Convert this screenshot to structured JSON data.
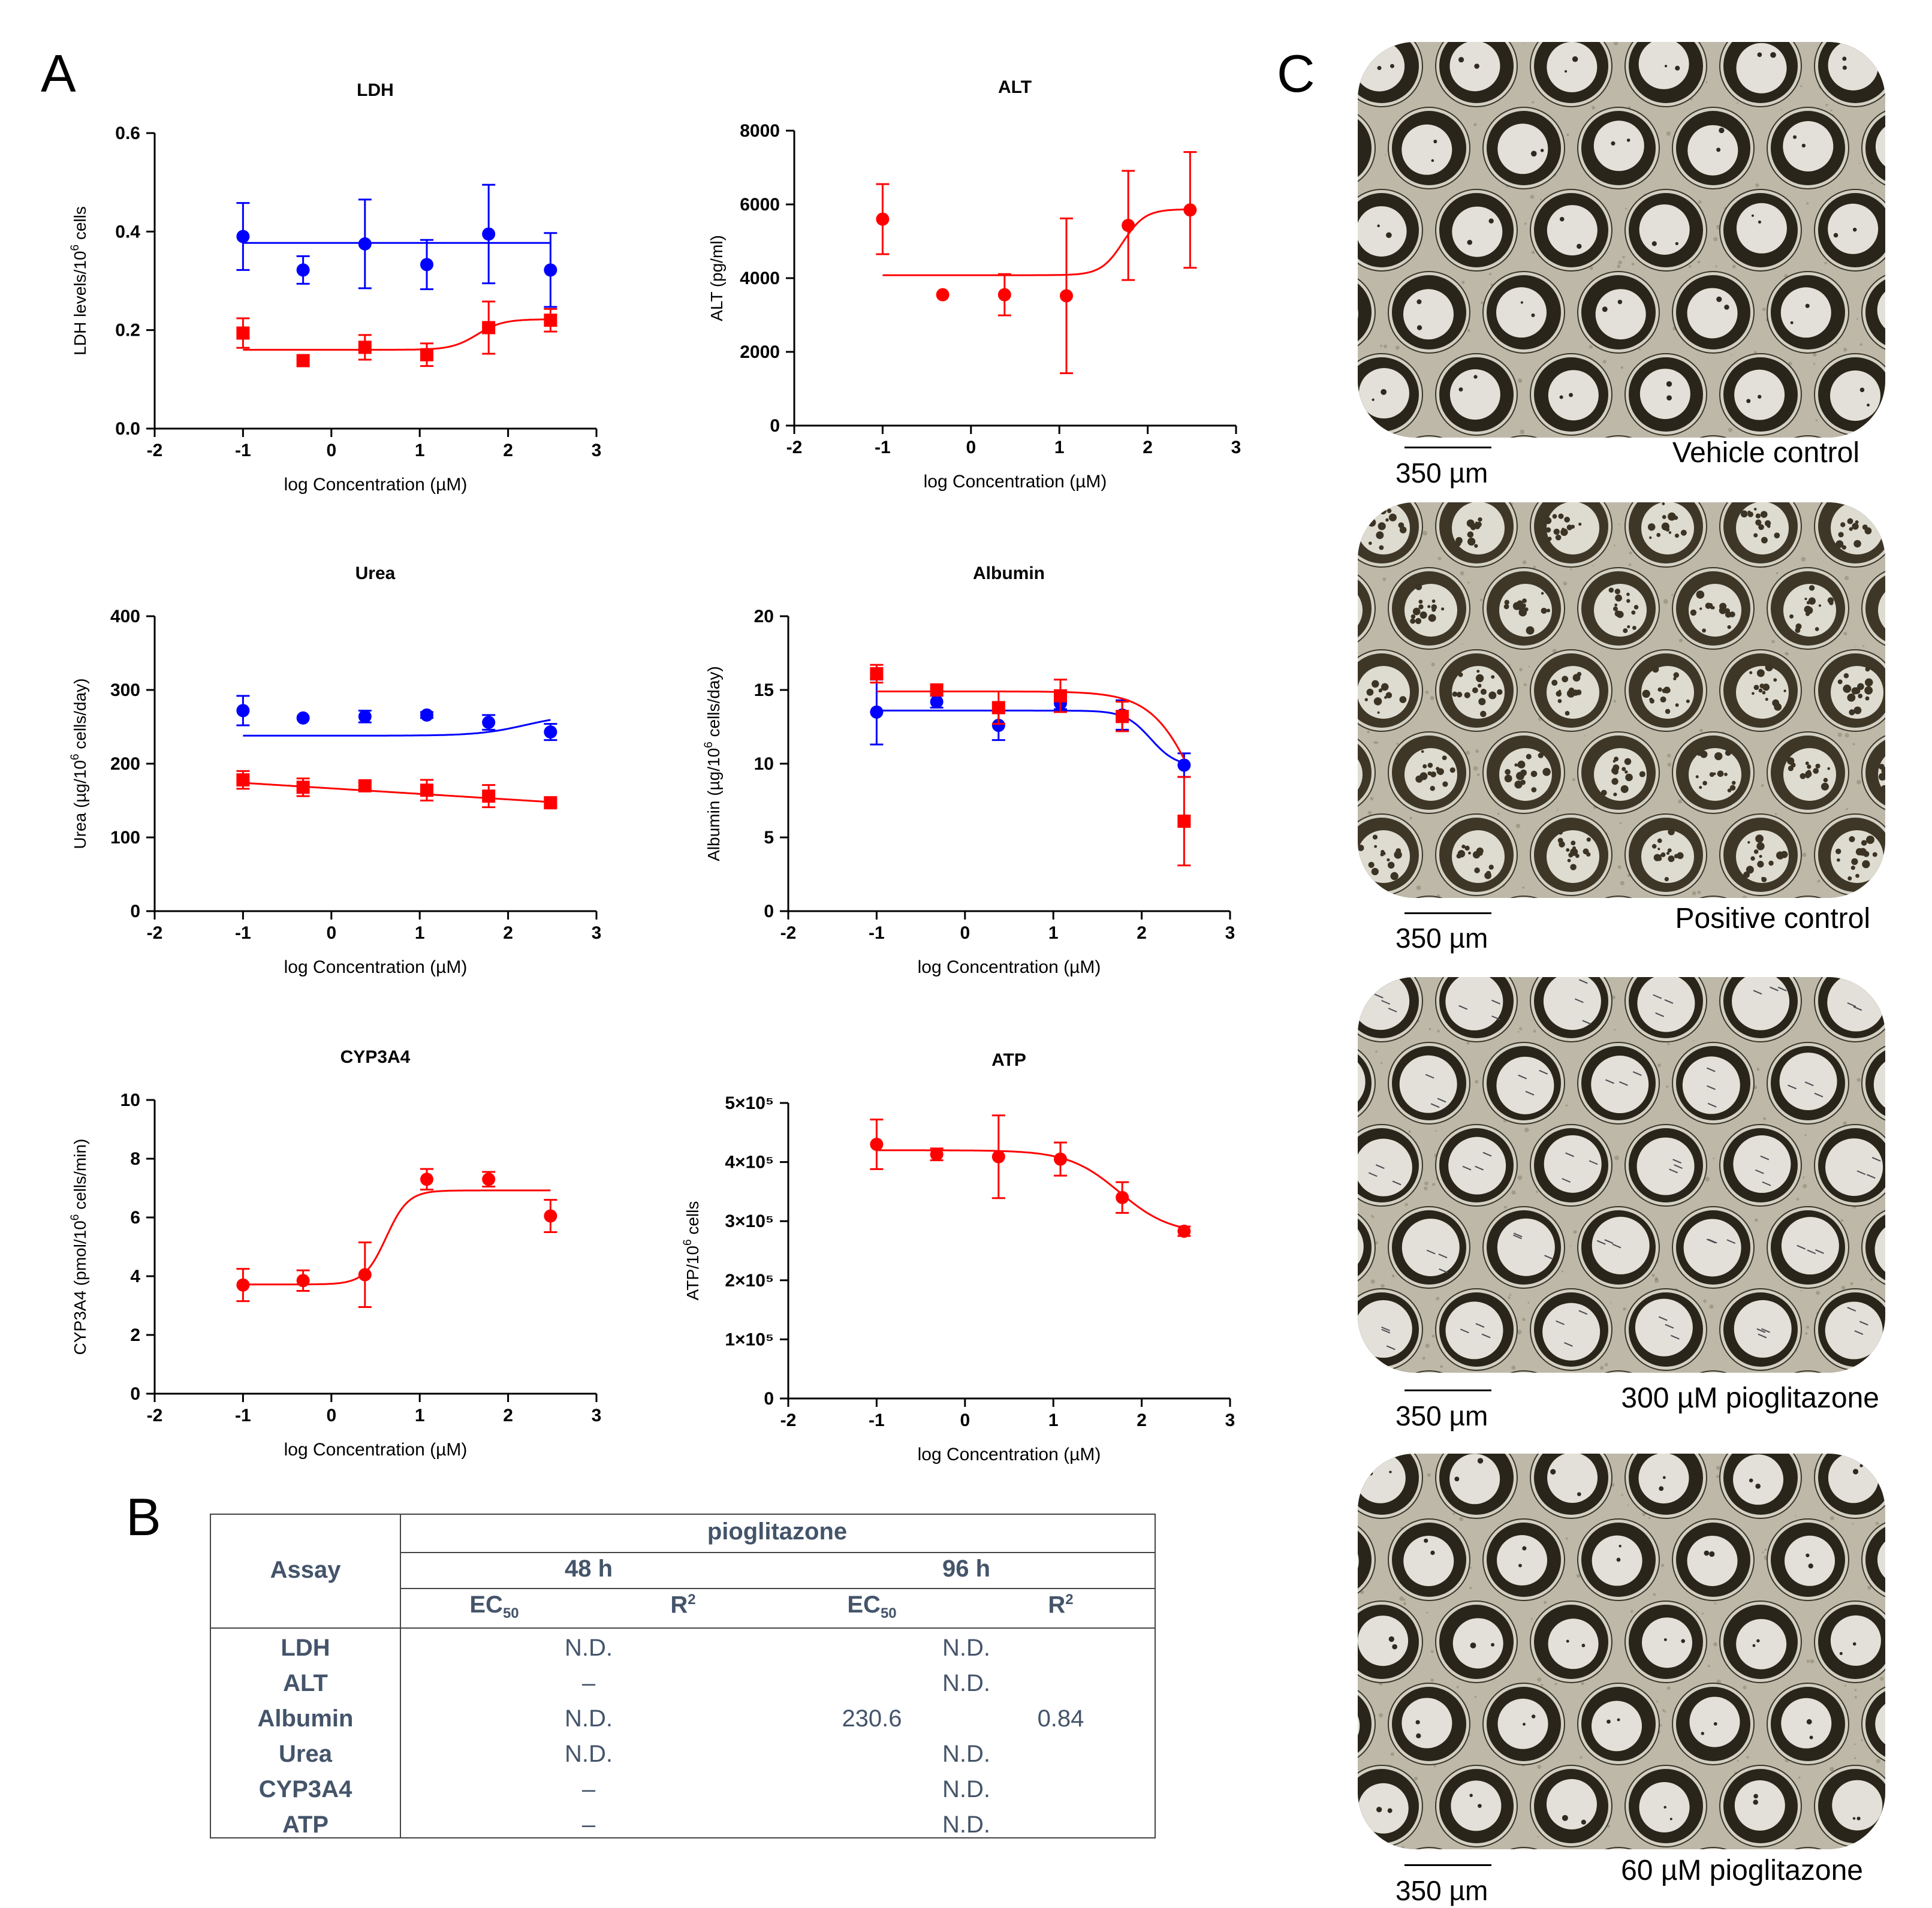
{
  "panels": {
    "a": "A",
    "b": "B",
    "c": "C"
  },
  "colors": {
    "series_48h": "#ff0000",
    "series_96h": "#0000ff",
    "table_text": "#44546a"
  },
  "chart_data": [
    {
      "id": "ldh",
      "type": "scatter",
      "title": "LDH",
      "xlabel": "log Concentration (µM)",
      "ylabel_parts": [
        "LDH levels/10",
        "6",
        " cells"
      ],
      "xlim": [
        -2,
        3
      ],
      "ylim": [
        0,
        0.6
      ],
      "xticks": [
        "-2",
        "-1",
        "0",
        "1",
        "2",
        "3"
      ],
      "yticks": [
        "0.0",
        "0.2",
        "0.4",
        "0.6"
      ],
      "series": [
        {
          "name": "96 h",
          "color": "#0000ff",
          "marker": "circle",
          "x": [
            -1.0,
            -0.32,
            0.38,
            1.08,
            1.78,
            2.48
          ],
          "y": [
            0.39,
            0.322,
            0.375,
            0.333,
            0.395,
            0.322
          ],
          "err": [
            0.068,
            0.028,
            0.09,
            0.05,
            0.1,
            0.075
          ],
          "fit": {
            "model": "flat",
            "value": 0.377
          }
        },
        {
          "name": "48 h",
          "color": "#ff0000",
          "marker": "square",
          "x": [
            -1.0,
            -0.32,
            0.38,
            1.08,
            1.78,
            2.48
          ],
          "y": [
            0.194,
            0.138,
            0.165,
            0.15,
            0.205,
            0.22
          ],
          "err": [
            0.03,
            0,
            0.025,
            0.023,
            0.053,
            0.023
          ],
          "fit": {
            "model": "sigmoid",
            "bottom": 0.16,
            "top": 0.222,
            "mid": 1.65,
            "hill": 3.0
          }
        }
      ]
    },
    {
      "id": "alt",
      "type": "scatter",
      "title": "ALT",
      "xlabel": "log Concentration (µM)",
      "ylabel_parts": [
        "ALT (pg/ml)"
      ],
      "xlim": [
        -2,
        3
      ],
      "ylim": [
        0,
        8000
      ],
      "xticks": [
        "-2",
        "-1",
        "0",
        "1",
        "2",
        "3"
      ],
      "yticks": [
        "0",
        "2000",
        "4000",
        "6000",
        "8000"
      ],
      "series": [
        {
          "name": "48 h",
          "color": "#ff0000",
          "marker": "circle",
          "x": [
            -1.0,
            -0.32,
            0.38,
            1.08,
            1.78,
            2.48
          ],
          "y": [
            5600,
            3550,
            3550,
            3520,
            5430,
            5850
          ],
          "err": [
            950,
            0,
            560,
            2100,
            1480,
            1570
          ],
          "fit": {
            "model": "sigmoid",
            "bottom": 4080,
            "top": 5870,
            "mid": 1.72,
            "hill": 3.5
          }
        }
      ]
    },
    {
      "id": "urea",
      "type": "scatter",
      "title": "Urea",
      "xlabel": "log Concentration (µM)",
      "ylabel_parts": [
        "Urea (µg/10",
        "6",
        " cells/day)"
      ],
      "xlim": [
        -2,
        3
      ],
      "ylim": [
        0,
        400
      ],
      "xticks": [
        "-2",
        "-1",
        "0",
        "1",
        "2",
        "3"
      ],
      "yticks": [
        "0",
        "100",
        "200",
        "300",
        "400"
      ],
      "series": [
        {
          "name": "96 h",
          "color": "#0000ff",
          "marker": "circle",
          "x": [
            -1.0,
            -0.32,
            0.38,
            1.08,
            1.78,
            2.48
          ],
          "y": [
            272,
            262,
            264,
            266,
            256,
            243
          ],
          "err": [
            20,
            0,
            8,
            4,
            10,
            11
          ],
          "fit": {
            "model": "sigmoid",
            "bottom": 238,
            "top": 267,
            "mid": 2.2,
            "hill": 1.6
          }
        },
        {
          "name": "48 h",
          "color": "#ff0000",
          "marker": "square",
          "x": [
            -1.0,
            -0.32,
            0.38,
            1.08,
            1.78,
            2.48
          ],
          "y": [
            178,
            168,
            170,
            164,
            156,
            147
          ],
          "err": [
            12,
            12,
            5,
            14,
            15,
            5
          ],
          "fit": {
            "model": "linear",
            "y0": 174,
            "y1": 148
          }
        }
      ]
    },
    {
      "id": "albumin",
      "type": "scatter",
      "title": "Albumin",
      "xlabel": "log Concentration (µM)",
      "ylabel_parts": [
        "Albumin (µg/10",
        "6",
        " cells/day)"
      ],
      "xlim": [
        -2,
        3
      ],
      "ylim": [
        0,
        20
      ],
      "xticks": [
        "-2",
        "-1",
        "0",
        "1",
        "2",
        "3"
      ],
      "yticks": [
        "0",
        "5",
        "10",
        "15",
        "20"
      ],
      "series": [
        {
          "name": "96 h",
          "color": "#0000ff",
          "marker": "circle",
          "x": [
            -1.0,
            -0.32,
            0.38,
            1.08,
            1.78,
            2.48
          ],
          "y": [
            13.5,
            14.2,
            12.6,
            14.1,
            13.3,
            9.9
          ],
          "err": [
            2.2,
            0.4,
            1.0,
            0.4,
            1.0,
            0.8
          ],
          "fit": {
            "model": "sigmoid",
            "bottom": 9.8,
            "top": 13.6,
            "mid": 2.1,
            "hill": -3.0
          }
        },
        {
          "name": "48 h",
          "color": "#ff0000",
          "marker": "square",
          "x": [
            -1.0,
            -0.32,
            0.38,
            1.08,
            1.78,
            2.48
          ],
          "y": [
            16.1,
            15.0,
            13.8,
            14.6,
            13.2,
            6.1
          ],
          "err": [
            0.6,
            0,
            1.1,
            1.1,
            1.0,
            3.0
          ],
          "fit": {
            "model": "sigmoid",
            "bottom": 0.0,
            "top": 14.9,
            "mid": 2.7,
            "hill": -1.6
          }
        }
      ]
    },
    {
      "id": "cyp3a4",
      "type": "scatter",
      "title": "CYP3A4",
      "xlabel": "log Concentration (µM)",
      "ylabel_parts": [
        "CYP3A4 (pmol/10",
        "6",
        " cells/min)"
      ],
      "xlim": [
        -2,
        3
      ],
      "ylim": [
        0,
        10
      ],
      "xticks": [
        "-2",
        "-1",
        "0",
        "1",
        "2",
        "3"
      ],
      "yticks": [
        "0",
        "2",
        "4",
        "6",
        "8",
        "10"
      ],
      "series": [
        {
          "name": "48 h",
          "color": "#ff0000",
          "marker": "circle",
          "x": [
            -1.0,
            -0.32,
            0.38,
            1.08,
            1.78,
            2.48
          ],
          "y": [
            3.7,
            3.85,
            4.05,
            7.3,
            7.3,
            6.05
          ],
          "err": [
            0.55,
            0.35,
            1.1,
            0.35,
            0.25,
            0.55
          ],
          "fit": {
            "model": "sigmoid",
            "bottom": 3.72,
            "top": 6.92,
            "mid": 0.62,
            "hill": 3.5
          }
        }
      ]
    },
    {
      "id": "atp",
      "type": "scatter",
      "title": "ATP",
      "xlabel": "log Concentration (µM)",
      "ylabel_parts": [
        "ATP/10",
        "6",
        " cells"
      ],
      "xlim": [
        -2,
        3
      ],
      "ylim": [
        0,
        500000
      ],
      "xticks": [
        "-2",
        "-1",
        "0",
        "1",
        "2",
        "3"
      ],
      "yticks": [
        "0",
        "1×10⁵",
        "2×10⁵",
        "3×10⁵",
        "4×10⁵",
        "5×10⁵"
      ],
      "series": [
        {
          "name": "48 h",
          "color": "#ff0000",
          "marker": "circle",
          "x": [
            -1.0,
            -0.32,
            0.38,
            1.08,
            1.78,
            2.48
          ],
          "y": [
            430000,
            413000,
            409000,
            405000,
            340000,
            283000
          ],
          "err": [
            42000,
            10000,
            70000,
            28000,
            26000,
            8000
          ],
          "fit": {
            "model": "sigmoid",
            "bottom": 278000,
            "top": 420000,
            "mid": 1.75,
            "hill": -1.5
          }
        }
      ]
    }
  ],
  "table": {
    "assay_header": "Assay",
    "compound": "pioglitazone",
    "time_48": "48 h",
    "time_96": "96 h",
    "ec50": "EC",
    "ec50_sub": "50",
    "r2": "R",
    "r2_sup": "2",
    "rows": [
      {
        "assay": "LDH",
        "v48": "N.D.",
        "ec96": "",
        "v96": "N.D.",
        "r96": ""
      },
      {
        "assay": "ALT",
        "v48": "–",
        "ec96": "",
        "v96": "N.D.",
        "r96": ""
      },
      {
        "assay": "Albumin",
        "v48": "N.D.",
        "ec96": "230.6",
        "v96": "",
        "r96": "0.84"
      },
      {
        "assay": "Urea",
        "v48": "N.D.",
        "ec96": "",
        "v96": "N.D.",
        "r96": ""
      },
      {
        "assay": "CYP3A4",
        "v48": "–",
        "ec96": "",
        "v96": "N.D.",
        "r96": ""
      },
      {
        "assay": "ATP",
        "v48": "–",
        "ec96": "",
        "v96": "N.D.",
        "r96": ""
      }
    ]
  },
  "micrographs": [
    {
      "label": "Vehicle control",
      "scale": "350 µm",
      "condition": "healthy"
    },
    {
      "label": "Positive control",
      "scale": "350 µm",
      "condition": "damaged"
    },
    {
      "label": "300 µM pioglitazone",
      "scale": "350 µm",
      "condition": "sparse"
    },
    {
      "label": "60 µM pioglitazone",
      "scale": "350 µm",
      "condition": "healthy2"
    }
  ]
}
